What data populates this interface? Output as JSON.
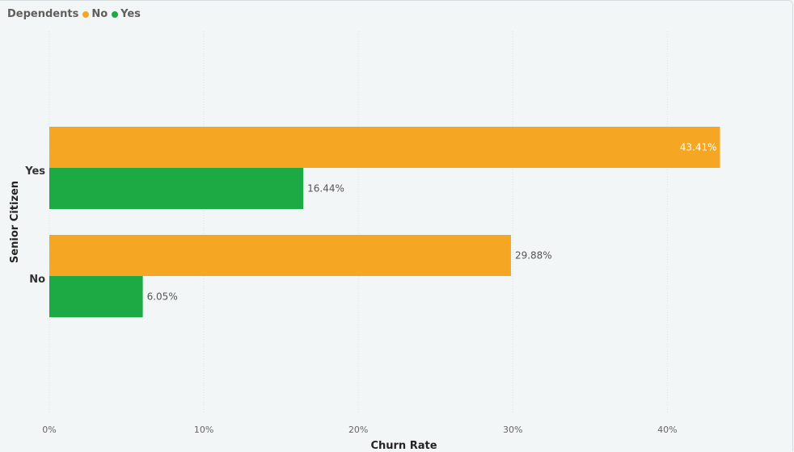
{
  "chart_data": {
    "type": "bar",
    "orientation": "horizontal",
    "legend_title": "Dependents",
    "legend_position": "top-left",
    "categories": [
      "Yes",
      "No"
    ],
    "series": [
      {
        "name": "No",
        "color": "#f5a623",
        "values": [
          43.41,
          29.88
        ],
        "labels": [
          "43.41%",
          "29.88%"
        ]
      },
      {
        "name": "Yes",
        "color": "#1daa44",
        "values": [
          16.44,
          6.05
        ],
        "labels": [
          "16.44%",
          "6.05%"
        ]
      }
    ],
    "xlabel": "Churn Rate",
    "ylabel": "Senior Citizen",
    "xlim": [
      0,
      46
    ],
    "xticks": [
      0,
      10,
      20,
      30,
      40
    ],
    "xtick_labels": [
      "0%",
      "10%",
      "20%",
      "30%",
      "40%"
    ],
    "grid": true
  }
}
